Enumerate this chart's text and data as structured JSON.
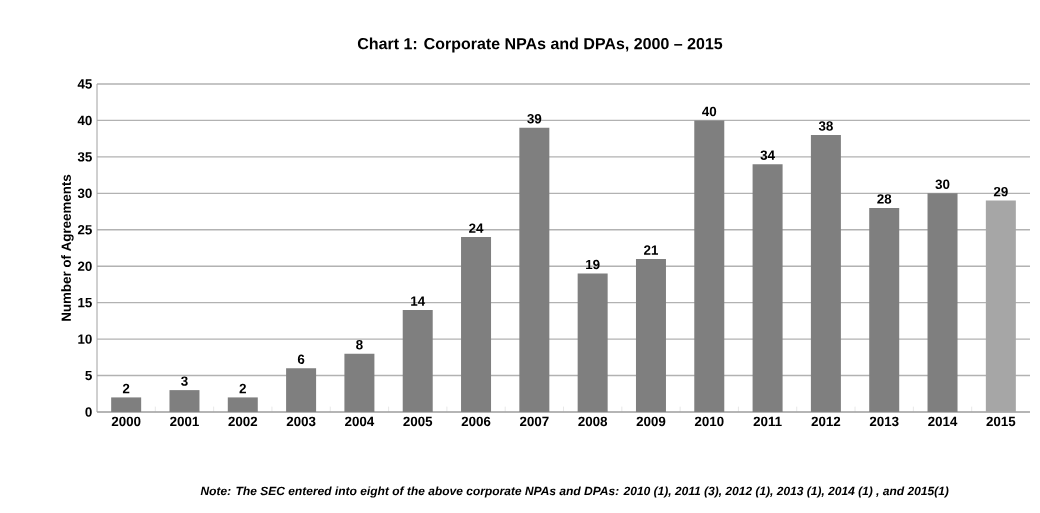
{
  "chart_data": {
    "type": "bar",
    "title": "Chart 1: Corporate NPAs and DPAs, 2000 – 2015",
    "ylabel": "Number of Agreements",
    "categories": [
      "2000",
      "2001",
      "2002",
      "2003",
      "2004",
      "2005",
      "2006",
      "2007",
      "2008",
      "2009",
      "2010",
      "2011",
      "2012",
      "2013",
      "2014",
      "2015"
    ],
    "values": [
      2,
      3,
      2,
      6,
      8,
      14,
      24,
      39,
      19,
      21,
      40,
      34,
      38,
      28,
      30,
      29
    ],
    "colors": [
      "#7f7f7f",
      "#7f7f7f",
      "#7f7f7f",
      "#7f7f7f",
      "#7f7f7f",
      "#7f7f7f",
      "#7f7f7f",
      "#7f7f7f",
      "#7f7f7f",
      "#7f7f7f",
      "#7f7f7f",
      "#7f7f7f",
      "#7f7f7f",
      "#7f7f7f",
      "#7f7f7f",
      "#a6a6a6"
    ],
    "ylim": [
      0,
      45
    ],
    "yticks": [
      0,
      5,
      10,
      15,
      20,
      25,
      30,
      35,
      40,
      45
    ],
    "grid": "y",
    "data_labels": true,
    "annotations": [
      "Note: The SEC entered into eight of the above corporate NPAs and DPAs: 2010 (1), 2011 (3), 2012 (1), 2013 (1), 2014 (1) , and 2015(1)"
    ]
  }
}
